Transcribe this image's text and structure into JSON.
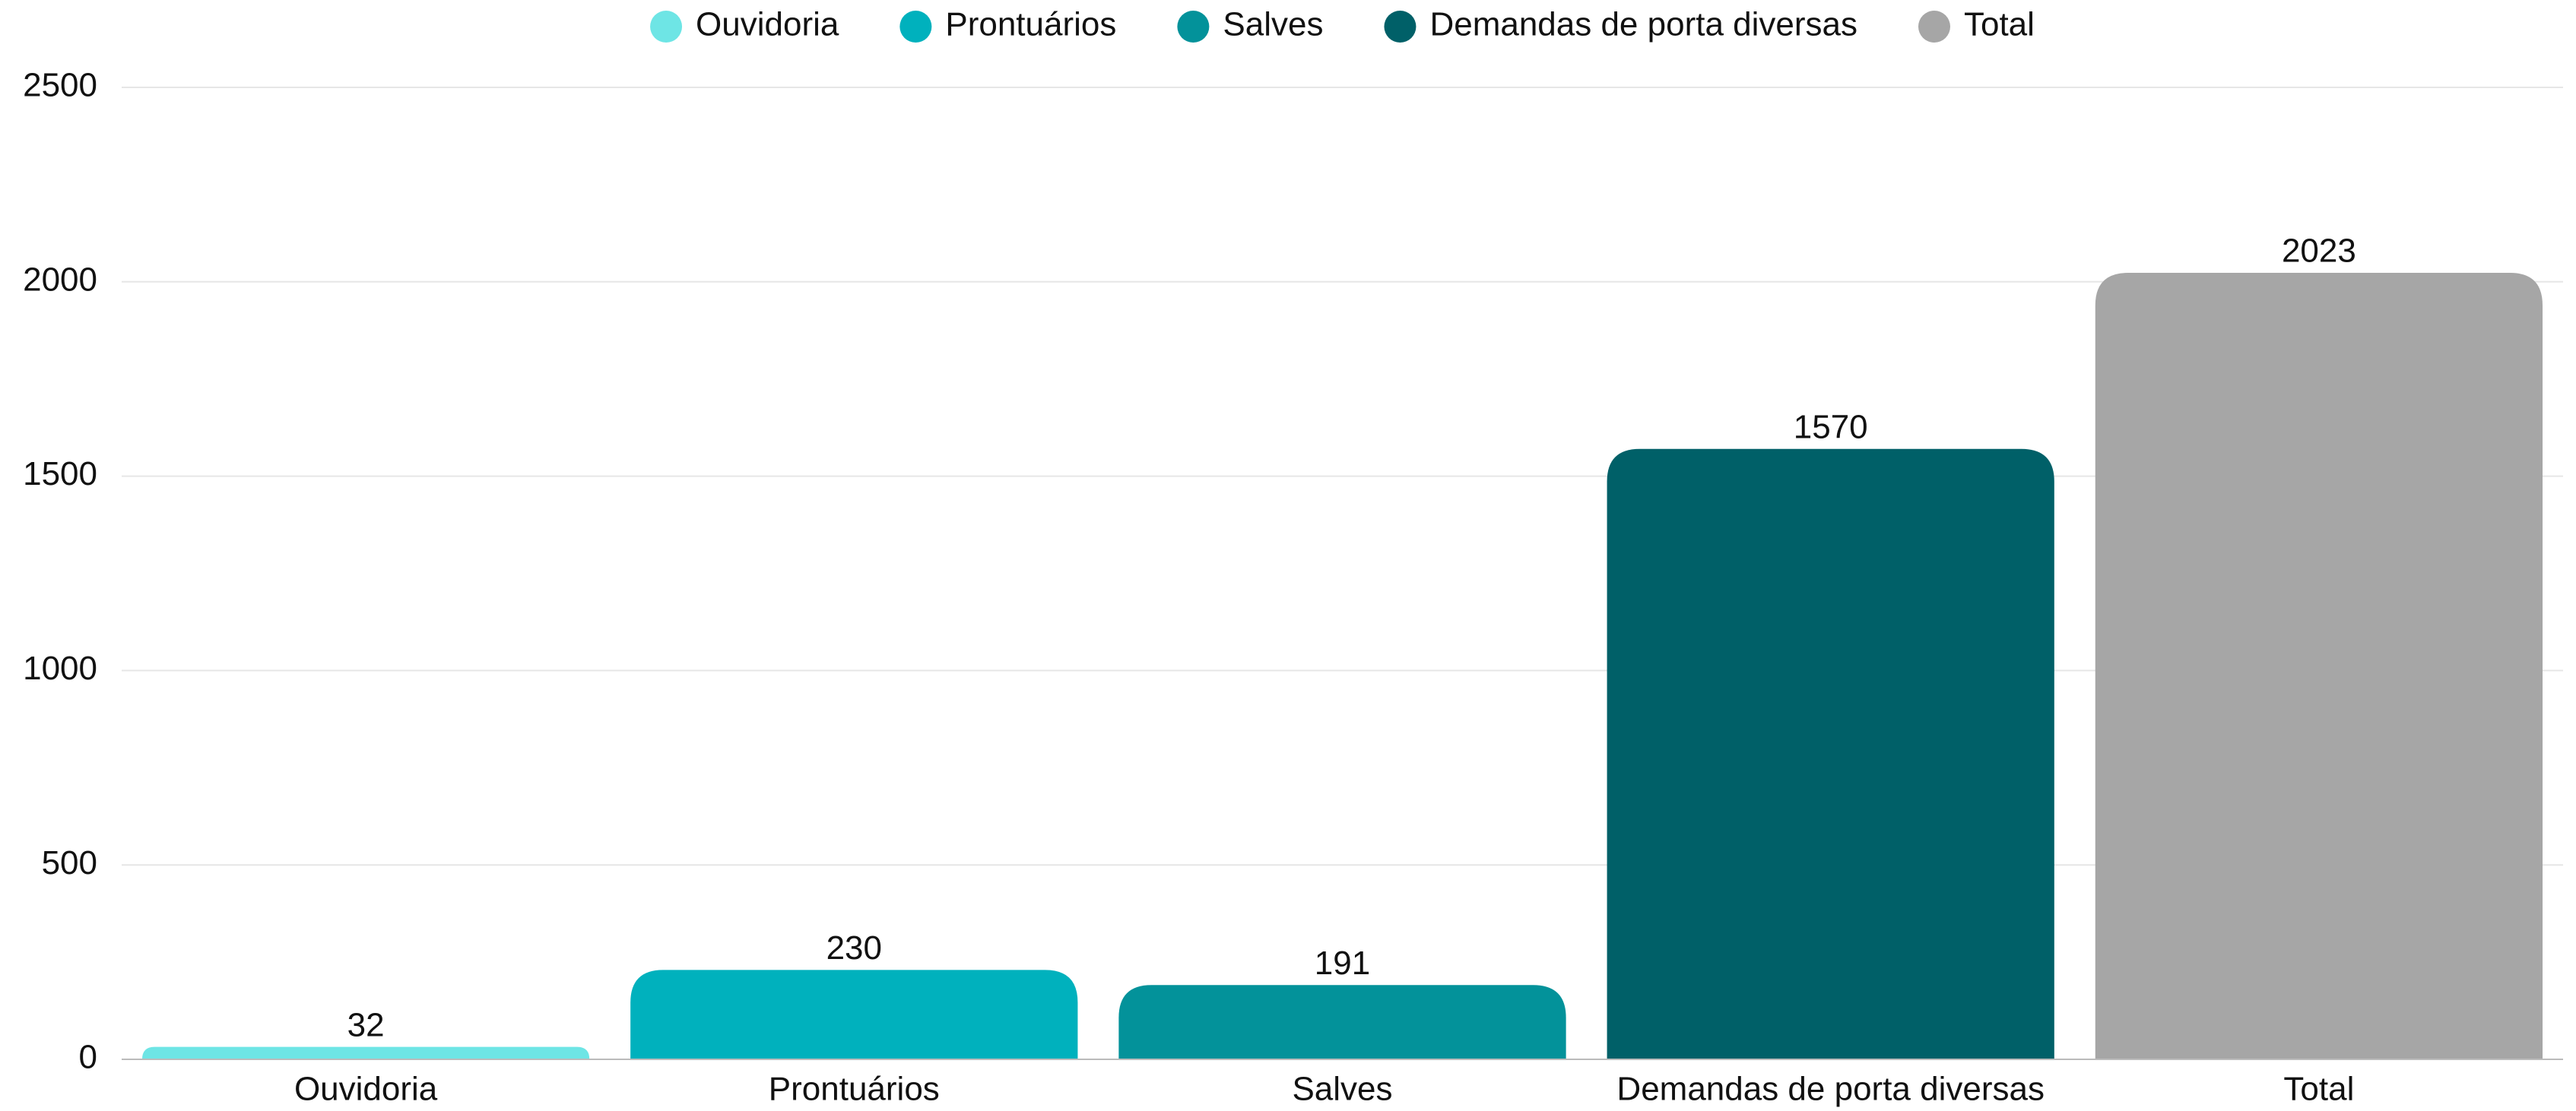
{
  "chart_data": {
    "type": "bar",
    "categories": [
      "Ouvidoria",
      "Prontuários",
      "Salves",
      "Demandas de porta diversas",
      "Total"
    ],
    "values": [
      32,
      230,
      191,
      1570,
      2023
    ],
    "colors": [
      "#6ee5e5",
      "#00b1bd",
      "#03929a",
      "#006068",
      "#a6a6a6"
    ],
    "ylim": [
      0,
      2500
    ],
    "yticks": [
      0,
      500,
      1000,
      1500,
      2000,
      2500
    ],
    "grid": true,
    "legend": "top"
  }
}
